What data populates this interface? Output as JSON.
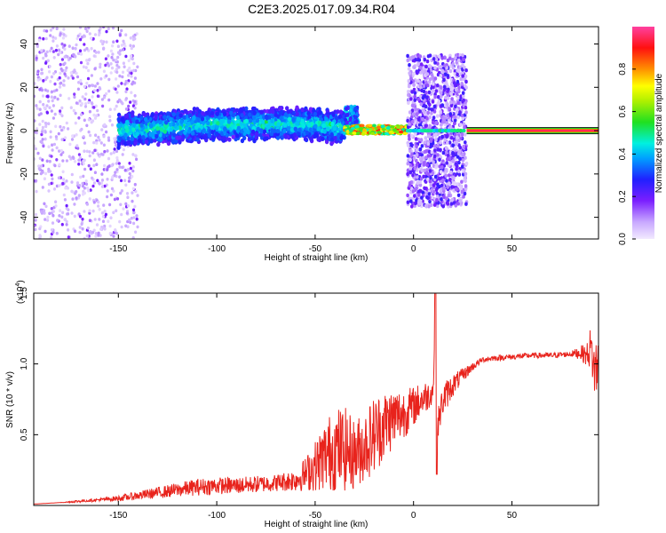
{
  "figure_title": "C2E3.2025.017.09.34.R04",
  "colors": {
    "snr_line": "#e8231c",
    "background": "#ffffff",
    "axis": "#000000"
  },
  "colorbar": {
    "label": "Normalized spectral amplitude",
    "ticks": [
      0.0,
      0.2,
      0.4,
      0.6,
      0.8
    ],
    "tick_labels": [
      "0.0",
      "0.2",
      "0.4",
      "0.6",
      "0.8"
    ],
    "range": [
      0,
      1
    ],
    "colormap": "rainbow (white-lavender-purple-blue-cyan-green-yellow-orange-red-pink)"
  },
  "chart_data": [
    {
      "type": "heatmap",
      "title": "",
      "xlabel": "Height of straight line (km)",
      "ylabel": "Frequency (Hz)",
      "xlim": [
        -193,
        94
      ],
      "ylim": [
        -50,
        48
      ],
      "xticks": [
        -150,
        -100,
        -50,
        0,
        50
      ],
      "xtick_labels": [
        "-150",
        "-100",
        "-50",
        "0",
        "50"
      ],
      "yticks": [
        -40,
        -20,
        0,
        20,
        40
      ],
      "ytick_labels": [
        "-40",
        "-20",
        "0",
        "20",
        "40"
      ],
      "regions": [
        {
          "x_range": [
            -193,
            -150
          ],
          "freq_range": [
            -50,
            48
          ],
          "amplitude": 0.05,
          "note": "scattered weak noise"
        },
        {
          "x_range": [
            -150,
            -35
          ],
          "freq_range": [
            -8,
            10
          ],
          "amplitude": 0.35,
          "centre_freq_trend": [
            [
              -150,
              0
            ],
            [
              -100,
              3
            ],
            [
              -50,
              3
            ],
            [
              -35,
              1
            ]
          ]
        },
        {
          "x_range": [
            -35,
            -3
          ],
          "freq_range": [
            -2,
            3
          ],
          "amplitude": 0.8
        },
        {
          "x_range": [
            -3,
            27
          ],
          "freq_range": [
            -35,
            35
          ],
          "amplitude": 0.12,
          "note": "broadband noise with narrow line at 0 Hz"
        },
        {
          "x_range": [
            27,
            94
          ],
          "freq_range": [
            -1.5,
            1.5
          ],
          "amplitude": 0.95,
          "note": "continuous carrier line at 0 Hz"
        }
      ],
      "grid": false
    },
    {
      "type": "line",
      "title": "",
      "xlabel": "Height of straight line (km)",
      "ylabel": "SNR (10 * v/v)",
      "y_multiplier": "(x10^4)",
      "xlim": [
        -193,
        94
      ],
      "ylim": [
        0,
        1.5
      ],
      "xticks": [
        -150,
        -100,
        -50,
        0,
        50
      ],
      "xtick_labels": [
        "-150",
        "-100",
        "-50",
        "0",
        "50"
      ],
      "yticks": [
        0.5,
        1.0,
        1.5
      ],
      "ytick_labels": [
        "0.5",
        "1.0",
        "1.5"
      ],
      "grid": false,
      "series": [
        {
          "x": [
            -193,
            -180,
            -170,
            -160,
            -150,
            -140,
            -130,
            -120,
            -110,
            -100,
            -90,
            -80,
            -70,
            -60,
            -55,
            -50,
            -45,
            -40,
            -35,
            -30,
            -25,
            -20,
            -15,
            -10,
            -5,
            0,
            5,
            8,
            10,
            11,
            12,
            15,
            20,
            25,
            30,
            35,
            40,
            50,
            60,
            70,
            80,
            85,
            88,
            90,
            92,
            94
          ],
          "y": [
            0.01,
            0.02,
            0.03,
            0.04,
            0.05,
            0.07,
            0.09,
            0.11,
            0.13,
            0.14,
            0.14,
            0.15,
            0.16,
            0.18,
            0.22,
            0.28,
            0.35,
            0.4,
            0.4,
            0.36,
            0.42,
            0.5,
            0.57,
            0.62,
            0.65,
            0.7,
            0.76,
            0.78,
            0.82,
            1.35,
            0.55,
            0.75,
            0.85,
            0.92,
            0.98,
            1.03,
            1.04,
            1.05,
            1.06,
            1.06,
            1.07,
            1.08,
            1.06,
            1.12,
            0.95,
            1.0
          ],
          "noise": [
            0.0,
            0.0,
            0.01,
            0.01,
            0.02,
            0.03,
            0.04,
            0.05,
            0.06,
            0.06,
            0.06,
            0.06,
            0.06,
            0.08,
            0.12,
            0.18,
            0.25,
            0.3,
            0.3,
            0.25,
            0.25,
            0.28,
            0.25,
            0.22,
            0.18,
            0.14,
            0.12,
            0.1,
            0.08,
            0.05,
            0.1,
            0.12,
            0.08,
            0.05,
            0.03,
            0.02,
            0.02,
            0.02,
            0.02,
            0.02,
            0.02,
            0.05,
            0.08,
            0.15,
            0.2,
            0.25
          ]
        }
      ]
    }
  ]
}
